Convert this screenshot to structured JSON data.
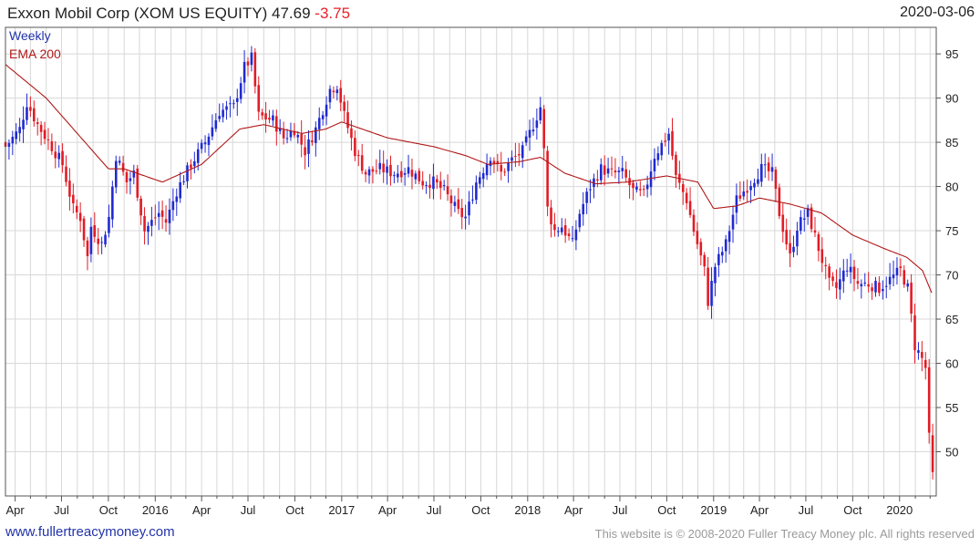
{
  "header": {
    "name_ticker": "Exxon Mobil Corp (XOM US EQUITY)",
    "price": "47.69",
    "change": "-3.75",
    "date": "2020-03-06"
  },
  "legend": {
    "weekly": "Weekly",
    "ema": "EMA 200"
  },
  "footer": {
    "url": "www.fullertreacymoney.com",
    "copyright": "This website is © 2008-2020 Fuller Treacy Money plc. All rights reserved"
  },
  "colors": {
    "up": "#1f2ad0",
    "down": "#e21c25",
    "ema": "#b01818",
    "grid": "#d8d8d8",
    "frame": "#555555"
  },
  "chart_data": {
    "type": "candlestick",
    "x_ticks": [
      "Apr",
      "Jul",
      "Oct",
      "2016",
      "Apr",
      "Jul",
      "Oct",
      "2017",
      "Apr",
      "Jul",
      "Oct",
      "2018",
      "Apr",
      "Jul",
      "Oct",
      "2019",
      "Apr",
      "Jul",
      "Oct",
      "2020"
    ],
    "y_ticks": [
      50,
      55,
      60,
      65,
      70,
      75,
      80,
      85,
      90,
      95
    ],
    "ylim": [
      45,
      98
    ],
    "xlim": [
      "2015-03-13",
      "2020-03-13"
    ],
    "grid": true,
    "y_axis_position": "right",
    "legend": "top-left",
    "close_keyframes": [
      [
        "2015-03-13",
        84.5
      ],
      [
        "2015-04-10",
        86.5
      ],
      [
        "2015-04-24",
        89.5
      ],
      [
        "2015-05-15",
        87.0
      ],
      [
        "2015-06-12",
        84.5
      ],
      [
        "2015-07-03",
        82.5
      ],
      [
        "2015-07-24",
        77.5
      ],
      [
        "2015-08-07",
        76.5
      ],
      [
        "2015-08-21",
        72.0
      ],
      [
        "2015-08-28",
        75.5
      ],
      [
        "2015-09-18",
        73.5
      ],
      [
        "2015-10-02",
        76.5
      ],
      [
        "2015-10-16",
        83.5
      ],
      [
        "2015-11-06",
        80.5
      ],
      [
        "2015-11-20",
        81.5
      ],
      [
        "2015-12-11",
        75.0
      ],
      [
        "2016-01-08",
        77.0
      ],
      [
        "2016-01-22",
        76.0
      ],
      [
        "2016-02-12",
        79.5
      ],
      [
        "2016-03-11",
        82.5
      ],
      [
        "2016-04-08",
        85.0
      ],
      [
        "2016-05-06",
        88.5
      ],
      [
        "2016-06-03",
        89.0
      ],
      [
        "2016-06-24",
        93.5
      ],
      [
        "2016-07-08",
        94.5
      ],
      [
        "2016-07-22",
        88.0
      ],
      [
        "2016-08-19",
        87.5
      ],
      [
        "2016-09-09",
        85.5
      ],
      [
        "2016-09-30",
        86.5
      ],
      [
        "2016-10-21",
        84.0
      ],
      [
        "2016-11-11",
        86.5
      ],
      [
        "2016-12-09",
        91.0
      ],
      [
        "2016-12-23",
        91.5
      ],
      [
        "2017-01-06",
        88.0
      ],
      [
        "2017-01-27",
        84.0
      ],
      [
        "2017-02-17",
        81.5
      ],
      [
        "2017-03-17",
        82.0
      ],
      [
        "2017-04-14",
        81.5
      ],
      [
        "2017-05-12",
        82.0
      ],
      [
        "2017-06-09",
        80.5
      ],
      [
        "2017-06-30",
        80.5
      ],
      [
        "2017-07-21",
        79.5
      ],
      [
        "2017-08-18",
        77.0
      ],
      [
        "2017-09-01",
        76.5
      ],
      [
        "2017-09-22",
        80.5
      ],
      [
        "2017-10-20",
        83.5
      ],
      [
        "2017-11-10",
        81.5
      ],
      [
        "2017-12-01",
        83.0
      ],
      [
        "2017-12-22",
        84.0
      ],
      [
        "2018-01-19",
        88.0
      ],
      [
        "2018-01-26",
        89.0
      ],
      [
        "2018-02-02",
        84.0
      ],
      [
        "2018-02-09",
        77.5
      ],
      [
        "2018-02-23",
        75.0
      ],
      [
        "2018-03-09",
        75.5
      ],
      [
        "2018-03-30",
        73.5
      ],
      [
        "2018-04-13",
        77.0
      ],
      [
        "2018-05-04",
        80.0
      ],
      [
        "2018-05-25",
        82.0
      ],
      [
        "2018-06-15",
        81.5
      ],
      [
        "2018-07-06",
        81.5
      ],
      [
        "2018-07-27",
        79.5
      ],
      [
        "2018-08-17",
        79.0
      ],
      [
        "2018-09-07",
        83.5
      ],
      [
        "2018-10-05",
        86.0
      ],
      [
        "2018-10-19",
        81.0
      ],
      [
        "2018-11-09",
        78.5
      ],
      [
        "2018-11-23",
        75.0
      ],
      [
        "2018-12-14",
        70.5
      ],
      [
        "2018-12-21",
        67.0
      ],
      [
        "2019-01-04",
        71.0
      ],
      [
        "2019-01-25",
        73.5
      ],
      [
        "2019-02-15",
        78.5
      ],
      [
        "2019-03-08",
        80.0
      ],
      [
        "2019-04-05",
        82.0
      ],
      [
        "2019-04-26",
        81.5
      ],
      [
        "2019-05-10",
        77.0
      ],
      [
        "2019-05-31",
        72.0
      ],
      [
        "2019-06-14",
        75.5
      ],
      [
        "2019-07-05",
        77.0
      ],
      [
        "2019-07-26",
        73.0
      ],
      [
        "2019-08-16",
        69.0
      ],
      [
        "2019-08-30",
        68.5
      ],
      [
        "2019-09-20",
        71.0
      ],
      [
        "2019-10-11",
        69.0
      ],
      [
        "2019-11-01",
        69.0
      ],
      [
        "2019-11-22",
        68.5
      ],
      [
        "2019-12-13",
        69.5
      ],
      [
        "2020-01-03",
        70.5
      ],
      [
        "2020-01-17",
        68.5
      ],
      [
        "2020-01-31",
        62.0
      ],
      [
        "2020-02-14",
        60.5
      ],
      [
        "2020-02-21",
        59.5
      ],
      [
        "2020-02-28",
        51.5
      ],
      [
        "2020-03-06",
        47.7
      ]
    ],
    "ema_keyframes": [
      [
        "2015-03-13",
        93.8
      ],
      [
        "2015-06-01",
        90.0
      ],
      [
        "2015-08-01",
        86.0
      ],
      [
        "2015-10-01",
        82.0
      ],
      [
        "2015-11-01",
        82.0
      ],
      [
        "2016-01-15",
        80.5
      ],
      [
        "2016-04-01",
        82.5
      ],
      [
        "2016-06-15",
        86.5
      ],
      [
        "2016-08-01",
        87.0
      ],
      [
        "2016-10-15",
        86.0
      ],
      [
        "2016-12-01",
        86.5
      ],
      [
        "2017-01-01",
        87.3
      ],
      [
        "2017-04-01",
        85.5
      ],
      [
        "2017-07-01",
        84.5
      ],
      [
        "2017-09-01",
        83.5
      ],
      [
        "2017-10-15",
        82.5
      ],
      [
        "2017-12-15",
        82.8
      ],
      [
        "2018-01-26",
        83.3
      ],
      [
        "2018-03-15",
        81.5
      ],
      [
        "2018-05-15",
        80.3
      ],
      [
        "2018-07-15",
        80.5
      ],
      [
        "2018-10-01",
        81.2
      ],
      [
        "2018-12-01",
        80.5
      ],
      [
        "2019-01-01",
        77.5
      ],
      [
        "2019-02-15",
        77.8
      ],
      [
        "2019-04-01",
        78.7
      ],
      [
        "2019-06-01",
        78.0
      ],
      [
        "2019-08-01",
        77.0
      ],
      [
        "2019-10-01",
        74.5
      ],
      [
        "2019-12-01",
        73.0
      ],
      [
        "2020-01-15",
        72.0
      ],
      [
        "2020-02-15",
        70.5
      ],
      [
        "2020-03-06",
        67.7
      ]
    ]
  }
}
